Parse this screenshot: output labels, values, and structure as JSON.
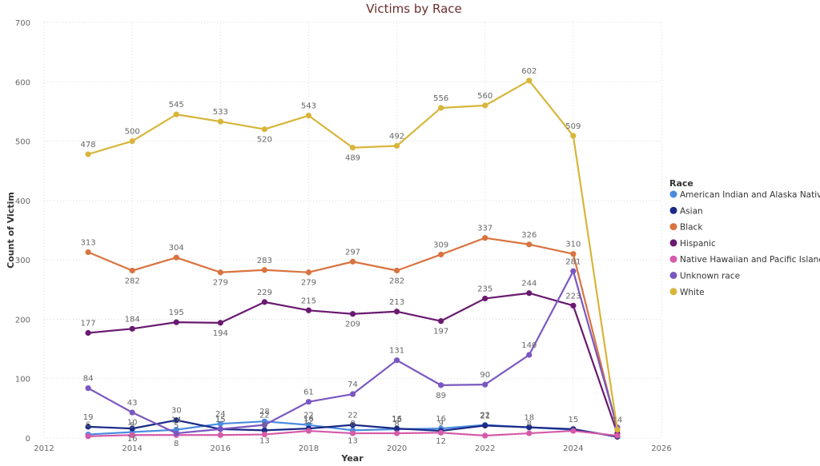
{
  "chart_data": {
    "type": "line",
    "title": "Victims by Race",
    "xlabel": "Year",
    "ylabel": "Count of Victim",
    "xlim": [
      2012,
      2026
    ],
    "ylim": [
      0,
      700
    ],
    "x_ticks": [
      "2012",
      "2014",
      "2016",
      "2018",
      "2020",
      "2022",
      "2024",
      "2026"
    ],
    "y_ticks": [
      "0",
      "100",
      "200",
      "300",
      "400",
      "500",
      "600",
      "700"
    ],
    "grid": true,
    "legend": {
      "title": "Race",
      "position": "right"
    },
    "x": [
      2013,
      2014,
      2015,
      2016,
      2017,
      2018,
      2019,
      2020,
      2021,
      2022,
      2023,
      2024,
      2025
    ],
    "series": [
      {
        "name": "American Indian and Alaska Native",
        "color": "#4a8be0",
        "values": [
          6,
          10,
          14,
          24,
          28,
          22,
          13,
          15,
          16,
          22,
          18,
          14,
          3
        ],
        "labels": [
          "6",
          "10",
          "14",
          "24",
          "28",
          "22",
          "13",
          "15",
          "16",
          "22",
          "",
          "",
          ""
        ]
      },
      {
        "name": "Asian",
        "color": "#1a2a86",
        "values": [
          19,
          16,
          30,
          15,
          13,
          16,
          22,
          16,
          12,
          21,
          18,
          15,
          2
        ],
        "labels": [
          "19",
          "16",
          "30",
          "15",
          "13",
          "16",
          "22",
          "16",
          "12",
          "21",
          "18",
          "15",
          ""
        ]
      },
      {
        "name": "Black",
        "color": "#d9733f",
        "values": [
          313,
          282,
          304,
          279,
          283,
          279,
          297,
          282,
          309,
          337,
          326,
          310,
          14
        ],
        "labels": [
          "313",
          "282",
          "304",
          "279",
          "283",
          "279",
          "297",
          "282",
          "309",
          "337",
          "326",
          "310",
          "14"
        ]
      },
      {
        "name": "Hispanic",
        "color": "#6a1a70",
        "values": [
          177,
          184,
          195,
          194,
          229,
          215,
          209,
          213,
          197,
          235,
          244,
          223,
          8
        ],
        "labels": [
          "177",
          "184",
          "195",
          "194",
          "229",
          "215",
          "209",
          "213",
          "197",
          "235",
          "244",
          "223",
          ""
        ]
      },
      {
        "name": "Native Hawaiian and Pacific Islander",
        "color": "#d55aa8",
        "values": [
          3,
          5,
          5,
          5,
          6,
          12,
          8,
          8,
          9,
          4,
          8,
          12,
          4
        ],
        "labels": [
          "",
          "5",
          "5",
          "",
          "6",
          "12",
          "8",
          "8",
          "9",
          "",
          "8",
          "",
          ""
        ]
      },
      {
        "name": "Unknown race",
        "color": "#7a57c0",
        "values": [
          84,
          43,
          8,
          15,
          22,
          61,
          74,
          131,
          89,
          90,
          140,
          281,
          18
        ],
        "labels": [
          "84",
          "43",
          "8",
          "15",
          "22",
          "61",
          "74",
          "131",
          "89",
          "90",
          "140",
          "281",
          ""
        ]
      },
      {
        "name": "White",
        "color": "#d8b53a",
        "values": [
          478,
          500,
          545,
          533,
          520,
          543,
          489,
          492,
          556,
          560,
          602,
          509,
          14
        ],
        "labels": [
          "478",
          "500",
          "545",
          "533",
          "520",
          "543",
          "489",
          "492",
          "556",
          "560",
          "602",
          "509",
          ""
        ]
      }
    ]
  }
}
